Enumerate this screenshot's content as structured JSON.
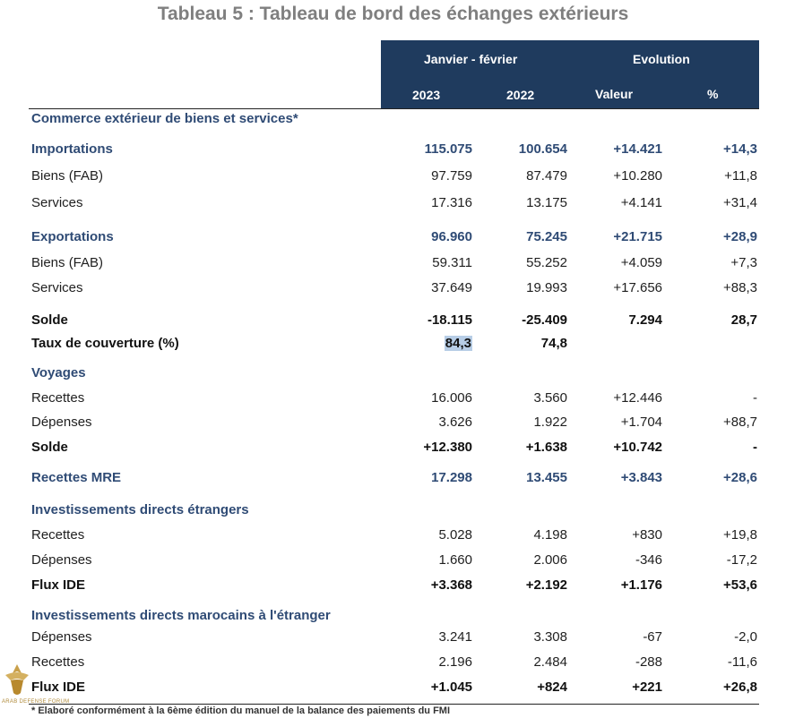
{
  "title": "Tableau 5 : Tableau de bord des échanges extérieurs",
  "header": {
    "period": "Janvier - février",
    "evolution": "Evolution",
    "year1": "2023",
    "year2": "2022",
    "valeur": "Valeur",
    "pct": "%"
  },
  "rows": [
    {
      "label": "Commerce extérieur de biens et services*",
      "style": "section"
    },
    {
      "label": "Importations",
      "style": "blue",
      "v2023": "115.075",
      "v2022": "100.654",
      "valeur": "+14.421",
      "pct": "+14,3"
    },
    {
      "label": "Biens (FAB)",
      "style": "plain",
      "v2023": "97.759",
      "v2022": "87.479",
      "valeur": "+10.280",
      "pct": "+11,8"
    },
    {
      "label": "Services",
      "style": "plain",
      "v2023": "17.316",
      "v2022": "13.175",
      "valeur": "+4.141",
      "pct": "+31,4"
    },
    {
      "label": "Exportations",
      "style": "blue",
      "v2023": "96.960",
      "v2022": "75.245",
      "valeur": "+21.715",
      "pct": "+28,9"
    },
    {
      "label": "Biens (FAB)",
      "style": "plain",
      "v2023": "59.311",
      "v2022": "55.252",
      "valeur": "+4.059",
      "pct": "+7,3"
    },
    {
      "label": "Services",
      "style": "plain",
      "v2023": "37.649",
      "v2022": "19.993",
      "valeur": "+17.656",
      "pct": "+88,3"
    },
    {
      "label": "Solde",
      "style": "bold",
      "v2023": "-18.115",
      "v2022": "-25.409",
      "valeur": "7.294",
      "pct": "28,7"
    },
    {
      "label": "Taux de couverture (%)",
      "style": "bold",
      "v2023": "84,3",
      "v2022": "74,8",
      "valeur": "",
      "pct": "",
      "highlight": true
    },
    {
      "label": "Voyages",
      "style": "section"
    },
    {
      "label": "Recettes",
      "style": "plain",
      "v2023": "16.006",
      "v2022": "3.560",
      "valeur": "+12.446",
      "pct": "-"
    },
    {
      "label": "Dépenses",
      "style": "plain",
      "v2023": "3.626",
      "v2022": "1.922",
      "valeur": "+1.704",
      "pct": "+88,7"
    },
    {
      "label": "Solde",
      "style": "bold",
      "v2023": "+12.380",
      "v2022": "+1.638",
      "valeur": "+10.742",
      "pct": "-"
    },
    {
      "label": "Recettes MRE",
      "style": "blue",
      "v2023": "17.298",
      "v2022": "13.455",
      "valeur": "+3.843",
      "pct": "+28,6"
    },
    {
      "label": "Investissements directs étrangers",
      "style": "section"
    },
    {
      "label": "Recettes",
      "style": "plain",
      "v2023": "5.028",
      "v2022": "4.198",
      "valeur": "+830",
      "pct": "+19,8"
    },
    {
      "label": "Dépenses",
      "style": "plain",
      "v2023": "1.660",
      "v2022": "2.006",
      "valeur": "-346",
      "pct": "-17,2"
    },
    {
      "label": "Flux IDE",
      "style": "bold",
      "v2023": "+3.368",
      "v2022": "+2.192",
      "valeur": "+1.176",
      "pct": "+53,6"
    },
    {
      "label": "Investissements directs marocains à l'étranger",
      "style": "section"
    },
    {
      "label": "Dépenses",
      "style": "plain",
      "v2023": "3.241",
      "v2022": "3.308",
      "valeur": "-67",
      "pct": "-2,0"
    },
    {
      "label": "Recettes",
      "style": "plain",
      "v2023": "2.196",
      "v2022": "2.484",
      "valeur": "-288",
      "pct": "-11,6"
    },
    {
      "label": "Flux IDE",
      "style": "bold",
      "v2023": "+1.045",
      "v2022": "+824",
      "valeur": "+221",
      "pct": "+26,8"
    }
  ],
  "footnote": "* Elaboré conformément à la 6ème édition du manuel de la balance des paiements du FMI",
  "watermark": "ARAB DEFENSE FORUM",
  "colors": {
    "header_bg": "#1f3b5e",
    "section_blue": "#2f4b75",
    "title_gray": "#7f7f7f",
    "highlight": "#b7cde6"
  }
}
